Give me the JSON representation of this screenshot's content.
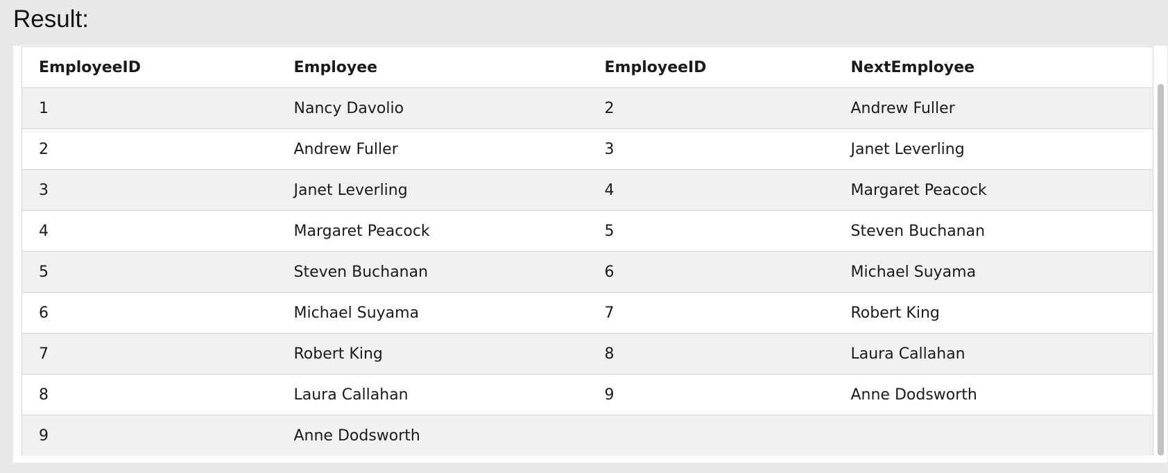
{
  "heading": "Result:",
  "table": {
    "columns": [
      "EmployeeID",
      "Employee",
      "EmployeeID",
      "NextEmployee"
    ],
    "rows": [
      [
        "1",
        "Nancy Davolio",
        "2",
        "Andrew Fuller"
      ],
      [
        "2",
        "Andrew Fuller",
        "3",
        "Janet Leverling"
      ],
      [
        "3",
        "Janet Leverling",
        "4",
        "Margaret Peacock"
      ],
      [
        "4",
        "Margaret Peacock",
        "5",
        "Steven Buchanan"
      ],
      [
        "5",
        "Steven Buchanan",
        "6",
        "Michael Suyama"
      ],
      [
        "6",
        "Michael Suyama",
        "7",
        "Robert King"
      ],
      [
        "7",
        "Robert King",
        "8",
        "Laura Callahan"
      ],
      [
        "8",
        "Laura Callahan",
        "9",
        "Anne Dodsworth"
      ],
      [
        "9",
        "Anne Dodsworth",
        "",
        ""
      ]
    ]
  }
}
